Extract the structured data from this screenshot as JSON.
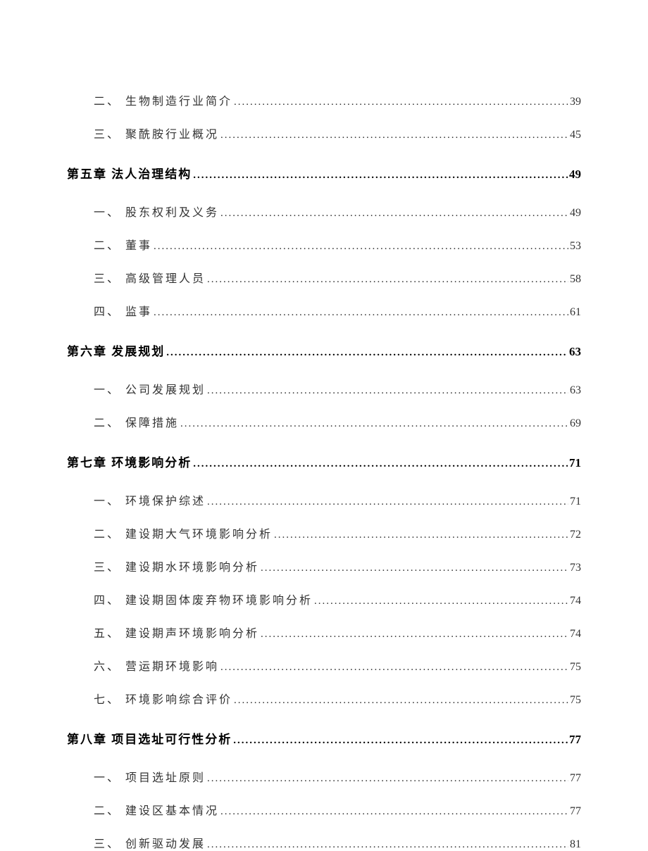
{
  "toc": {
    "dots_pattern": "..............................................................................................................................................................................................",
    "text_color": "#333333",
    "chapter_color": "#000000",
    "background_color": "#ffffff",
    "label_fontsize": 16,
    "chapter_fontsize": 17,
    "entries": [
      {
        "type": "sub",
        "label": "二、 生物制造行业简介",
        "page": "39"
      },
      {
        "type": "sub",
        "label": "三、 聚酰胺行业概况",
        "page": "45"
      },
      {
        "type": "chapter",
        "label": "第五章 法人治理结构",
        "page": "49"
      },
      {
        "type": "sub",
        "label": "一、 股东权利及义务",
        "page": "49"
      },
      {
        "type": "sub",
        "label": "二、 董事",
        "page": "53"
      },
      {
        "type": "sub",
        "label": "三、 高级管理人员",
        "page": "58"
      },
      {
        "type": "sub",
        "label": "四、 监事",
        "page": "61"
      },
      {
        "type": "chapter",
        "label": "第六章 发展规划",
        "page": "63"
      },
      {
        "type": "sub",
        "label": "一、 公司发展规划",
        "page": "63"
      },
      {
        "type": "sub",
        "label": "二、 保障措施",
        "page": "69"
      },
      {
        "type": "chapter",
        "label": "第七章 环境影响分析",
        "page": "71"
      },
      {
        "type": "sub",
        "label": "一、 环境保护综述",
        "page": "71"
      },
      {
        "type": "sub",
        "label": "二、 建设期大气环境影响分析",
        "page": "72"
      },
      {
        "type": "sub",
        "label": "三、 建设期水环境影响分析",
        "page": "73"
      },
      {
        "type": "sub",
        "label": "四、 建设期固体废弃物环境影响分析",
        "page": "74"
      },
      {
        "type": "sub",
        "label": "五、 建设期声环境影响分析",
        "page": "74"
      },
      {
        "type": "sub",
        "label": "六、 营运期环境影响",
        "page": "75"
      },
      {
        "type": "sub",
        "label": "七、 环境影响综合评价",
        "page": "75"
      },
      {
        "type": "chapter",
        "label": "第八章 项目选址可行性分析",
        "page": "77"
      },
      {
        "type": "sub",
        "label": "一、 项目选址原则",
        "page": "77"
      },
      {
        "type": "sub",
        "label": "二、 建设区基本情况",
        "page": "77"
      },
      {
        "type": "sub",
        "label": "三、 创新驱动发展",
        "page": "81"
      }
    ]
  }
}
